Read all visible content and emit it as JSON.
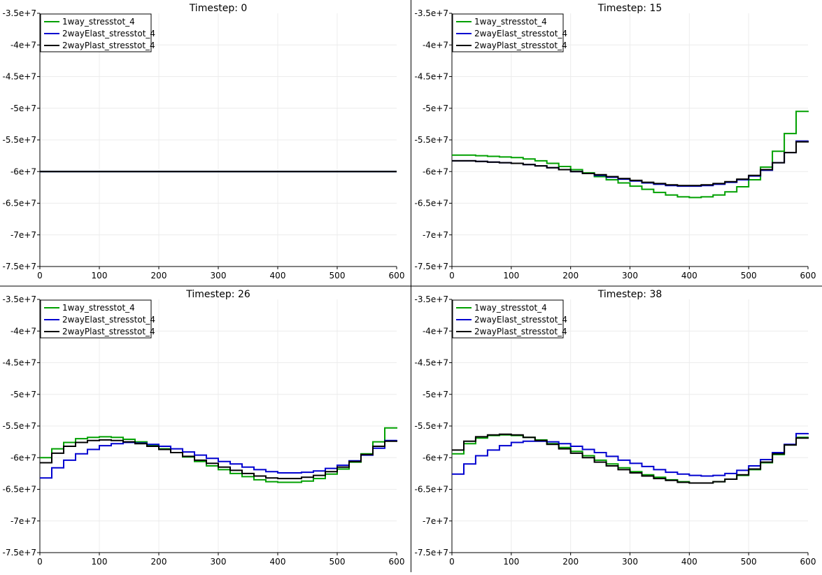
{
  "chart_data": [
    {
      "type": "line",
      "title": "Timestep: 0",
      "xlim": [
        0,
        600
      ],
      "ylim": [
        -75000000,
        -35000000
      ],
      "xticks": [
        "0",
        "100",
        "200",
        "300",
        "400",
        "500",
        "600"
      ],
      "yticks": [
        "-3.5e+7",
        "-4e+7",
        "-4.5e+7",
        "-5e+7",
        "-5.5e+7",
        "-6e+7",
        "-6.5e+7",
        "-7e+7",
        "-7.5e+7"
      ],
      "grid": true,
      "legend_position": "top-left",
      "series": [
        {
          "name": "1way_stresstot_4",
          "color": "#00a000",
          "x": [
            0,
            600
          ],
          "y": [
            -60000000,
            -60000000
          ]
        },
        {
          "name": "2wayElast_stresstot_4",
          "color": "#0000d0",
          "x": [
            0,
            600
          ],
          "y": [
            -60000000,
            -60000000
          ]
        },
        {
          "name": "2wayPlast_stresstot_4",
          "color": "#000000",
          "x": [
            0,
            600
          ],
          "y": [
            -60000000,
            -60000000
          ]
        }
      ]
    },
    {
      "type": "line",
      "title": "Timestep: 15",
      "xlim": [
        0,
        600
      ],
      "ylim": [
        -75000000,
        -35000000
      ],
      "xticks": [
        "0",
        "100",
        "200",
        "300",
        "400",
        "500",
        "600"
      ],
      "yticks": [
        "-3.5e+7",
        "-4e+7",
        "-4.5e+7",
        "-5e+7",
        "-5.5e+7",
        "-6e+7",
        "-6.5e+7",
        "-7e+7",
        "-7.5e+7"
      ],
      "grid": true,
      "legend_position": "top-left",
      "series": [
        {
          "name": "1way_stresstot_4",
          "color": "#00a000",
          "x": [
            0,
            20,
            40,
            60,
            80,
            100,
            120,
            140,
            160,
            180,
            200,
            220,
            240,
            260,
            280,
            300,
            320,
            340,
            360,
            380,
            400,
            420,
            440,
            460,
            480,
            500,
            520,
            540,
            560,
            580,
            600
          ],
          "y": [
            -57400000,
            -57400000,
            -57500000,
            -57600000,
            -57700000,
            -57800000,
            -58000000,
            -58300000,
            -58700000,
            -59200000,
            -59700000,
            -60200000,
            -60800000,
            -61300000,
            -61800000,
            -62300000,
            -62800000,
            -63300000,
            -63700000,
            -64000000,
            -64100000,
            -64000000,
            -63700000,
            -63200000,
            -62400000,
            -61300000,
            -59300000,
            -56800000,
            -54000000,
            -50500000,
            -50400000
          ]
        },
        {
          "name": "2wayElast_stresstot_4",
          "color": "#0000d0",
          "x": [
            0,
            20,
            40,
            60,
            80,
            100,
            120,
            140,
            160,
            180,
            200,
            220,
            240,
            260,
            280,
            300,
            320,
            340,
            360,
            380,
            400,
            420,
            440,
            460,
            480,
            500,
            520,
            540,
            560,
            580,
            600
          ],
          "y": [
            -58300000,
            -58300000,
            -58400000,
            -58500000,
            -58600000,
            -58700000,
            -58900000,
            -59100000,
            -59400000,
            -59700000,
            -60000000,
            -60300000,
            -60600000,
            -60900000,
            -61200000,
            -61500000,
            -61800000,
            -62000000,
            -62200000,
            -62300000,
            -62300000,
            -62200000,
            -62000000,
            -61700000,
            -61300000,
            -60700000,
            -59800000,
            -58600000,
            -57000000,
            -55200000,
            -55100000
          ]
        },
        {
          "name": "2wayPlast_stresstot_4",
          "color": "#000000",
          "x": [
            0,
            20,
            40,
            60,
            80,
            100,
            120,
            140,
            160,
            180,
            200,
            220,
            240,
            260,
            280,
            300,
            320,
            340,
            360,
            380,
            400,
            420,
            440,
            460,
            480,
            500,
            520,
            540,
            560,
            580,
            600
          ],
          "y": [
            -58300000,
            -58300000,
            -58400000,
            -58500000,
            -58600000,
            -58700000,
            -58900000,
            -59100000,
            -59400000,
            -59700000,
            -60000000,
            -60300000,
            -60500000,
            -60800000,
            -61100000,
            -61400000,
            -61700000,
            -61900000,
            -62100000,
            -62200000,
            -62200000,
            -62100000,
            -61900000,
            -61600000,
            -61200000,
            -60600000,
            -59700000,
            -58600000,
            -57000000,
            -55300000,
            -55200000
          ]
        }
      ]
    },
    {
      "type": "line",
      "title": "Timestep: 26",
      "xlim": [
        0,
        600
      ],
      "ylim": [
        -75000000,
        -35000000
      ],
      "xticks": [
        "0",
        "100",
        "200",
        "300",
        "400",
        "500",
        "600"
      ],
      "yticks": [
        "-3.5e+7",
        "-4e+7",
        "-4.5e+7",
        "-5e+7",
        "-5.5e+7",
        "-6e+7",
        "-6.5e+7",
        "-7e+7",
        "-7.5e+7"
      ],
      "grid": true,
      "legend_position": "top-left",
      "series": [
        {
          "name": "1way_stresstot_4",
          "color": "#00a000",
          "x": [
            0,
            20,
            40,
            60,
            80,
            100,
            120,
            140,
            160,
            180,
            200,
            220,
            240,
            260,
            280,
            300,
            320,
            340,
            360,
            380,
            400,
            420,
            440,
            460,
            480,
            500,
            520,
            540,
            560,
            580,
            600
          ],
          "y": [
            -60000000,
            -58600000,
            -57600000,
            -57000000,
            -56800000,
            -56700000,
            -56800000,
            -57100000,
            -57500000,
            -58000000,
            -58600000,
            -59200000,
            -59900000,
            -60600000,
            -61300000,
            -61900000,
            -62500000,
            -63000000,
            -63500000,
            -63800000,
            -63900000,
            -63900000,
            -63700000,
            -63300000,
            -62600000,
            -61800000,
            -60700000,
            -59400000,
            -57500000,
            -55300000,
            -55200000
          ]
        },
        {
          "name": "2wayElast_stresstot_4",
          "color": "#0000d0",
          "x": [
            0,
            20,
            40,
            60,
            80,
            100,
            120,
            140,
            160,
            180,
            200,
            220,
            240,
            260,
            280,
            300,
            320,
            340,
            360,
            380,
            400,
            420,
            440,
            460,
            480,
            500,
            520,
            540,
            560,
            580,
            600
          ],
          "y": [
            -63200000,
            -61600000,
            -60400000,
            -59400000,
            -58700000,
            -58100000,
            -57800000,
            -57600000,
            -57700000,
            -57900000,
            -58200000,
            -58600000,
            -59100000,
            -59600000,
            -60100000,
            -60600000,
            -61000000,
            -61500000,
            -61900000,
            -62200000,
            -62400000,
            -62400000,
            -62300000,
            -62100000,
            -61700000,
            -61200000,
            -60500000,
            -59600000,
            -58500000,
            -57300000,
            -57200000
          ]
        },
        {
          "name": "2wayPlast_stresstot_4",
          "color": "#000000",
          "x": [
            0,
            20,
            40,
            60,
            80,
            100,
            120,
            140,
            160,
            180,
            200,
            220,
            240,
            260,
            280,
            300,
            320,
            340,
            360,
            380,
            400,
            420,
            440,
            460,
            480,
            500,
            520,
            540,
            560,
            580,
            600
          ],
          "y": [
            -60800000,
            -59300000,
            -58200000,
            -57600000,
            -57300000,
            -57200000,
            -57300000,
            -57500000,
            -57800000,
            -58200000,
            -58700000,
            -59200000,
            -59800000,
            -60400000,
            -60900000,
            -61500000,
            -62000000,
            -62500000,
            -62900000,
            -63200000,
            -63300000,
            -63300000,
            -63100000,
            -62800000,
            -62200000,
            -61500000,
            -60600000,
            -59500000,
            -58200000,
            -57400000,
            -57300000
          ]
        }
      ]
    },
    {
      "type": "line",
      "title": "Timestep: 38",
      "xlim": [
        0,
        600
      ],
      "ylim": [
        -75000000,
        -35000000
      ],
      "xticks": [
        "0",
        "100",
        "200",
        "300",
        "400",
        "500",
        "600"
      ],
      "yticks": [
        "-3.5e+7",
        "-4e+7",
        "-4.5e+7",
        "-5e+7",
        "-5.5e+7",
        "-6e+7",
        "-6.5e+7",
        "-7e+7",
        "-7.5e+7"
      ],
      "grid": true,
      "legend_position": "top-left",
      "series": [
        {
          "name": "1way_stresstot_4",
          "color": "#00a000",
          "x": [
            0,
            20,
            40,
            60,
            80,
            100,
            120,
            140,
            160,
            180,
            200,
            220,
            240,
            260,
            280,
            300,
            320,
            340,
            360,
            380,
            400,
            420,
            440,
            460,
            480,
            500,
            520,
            540,
            560,
            580,
            600
          ],
          "y": [
            -59400000,
            -57800000,
            -56900000,
            -56500000,
            -56400000,
            -56500000,
            -56800000,
            -57200000,
            -57800000,
            -58400000,
            -59000000,
            -59700000,
            -60400000,
            -61000000,
            -61600000,
            -62200000,
            -62700000,
            -63100000,
            -63500000,
            -63800000,
            -64000000,
            -64000000,
            -63800000,
            -63400000,
            -62800000,
            -61900000,
            -60800000,
            -59500000,
            -58000000,
            -56800000,
            -56700000
          ]
        },
        {
          "name": "2wayElast_stresstot_4",
          "color": "#0000d0",
          "x": [
            0,
            20,
            40,
            60,
            80,
            100,
            120,
            140,
            160,
            180,
            200,
            220,
            240,
            260,
            280,
            300,
            320,
            340,
            360,
            380,
            400,
            420,
            440,
            460,
            480,
            500,
            520,
            540,
            560,
            580,
            600
          ],
          "y": [
            -62600000,
            -61000000,
            -59700000,
            -58800000,
            -58100000,
            -57600000,
            -57400000,
            -57400000,
            -57500000,
            -57800000,
            -58200000,
            -58700000,
            -59200000,
            -59800000,
            -60400000,
            -60900000,
            -61400000,
            -61900000,
            -62300000,
            -62600000,
            -62800000,
            -62900000,
            -62800000,
            -62500000,
            -62000000,
            -61300000,
            -60300000,
            -59200000,
            -57900000,
            -56200000,
            -56100000
          ]
        },
        {
          "name": "2wayPlast_stresstot_4",
          "color": "#000000",
          "x": [
            0,
            20,
            40,
            60,
            80,
            100,
            120,
            140,
            160,
            180,
            200,
            220,
            240,
            260,
            280,
            300,
            320,
            340,
            360,
            380,
            400,
            420,
            440,
            460,
            480,
            500,
            520,
            540,
            560,
            580,
            600
          ],
          "y": [
            -58800000,
            -57400000,
            -56700000,
            -56400000,
            -56300000,
            -56400000,
            -56800000,
            -57300000,
            -57900000,
            -58600000,
            -59300000,
            -60000000,
            -60700000,
            -61300000,
            -61900000,
            -62400000,
            -62900000,
            -63300000,
            -63600000,
            -63900000,
            -64000000,
            -64000000,
            -63800000,
            -63400000,
            -62700000,
            -61800000,
            -60700000,
            -59400000,
            -58000000,
            -56900000,
            -56800000
          ]
        }
      ]
    }
  ]
}
